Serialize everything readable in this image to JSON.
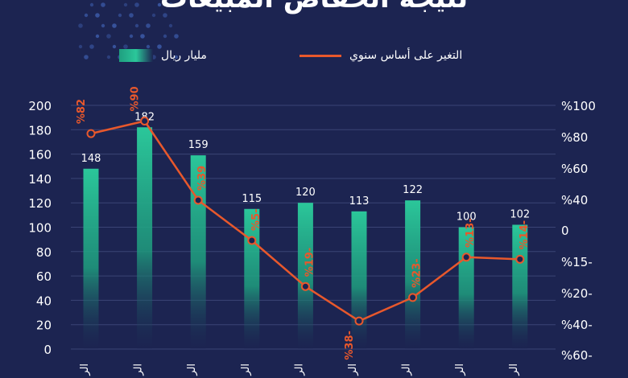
{
  "title": "نتيجة انخفاض المبيعات",
  "legend": {
    "bars_label": "مليار ريال",
    "line_label": "التغير على أساس سنوي"
  },
  "colors": {
    "background": "#1c2451",
    "bar": "#2bc79a",
    "line": "#e8582c",
    "grid": "#3a4475",
    "pct_label": "#e8582c",
    "axis_text": "#ffffff"
  },
  "chart_data": {
    "type": "bar",
    "title": "نتيجة انخفاض المبيعات",
    "bar_value_labels": [
      "148",
      "182",
      "159",
      "115",
      "120",
      "113",
      "122",
      "100",
      "102"
    ],
    "series": [
      {
        "name": "مليار ريال",
        "type": "bar",
        "values": [
          148,
          182,
          159,
          115,
          120,
          113,
          122,
          100,
          102
        ]
      },
      {
        "name": "التغير على أساس سنوي",
        "type": "line",
        "values": [
          82,
          90,
          39,
          -5,
          -19,
          -38,
          -23,
          -13,
          -14
        ]
      }
    ],
    "pct_labels": [
      "%82",
      "%90",
      "%39",
      "%5-",
      "%19-",
      "%38-",
      "%23-",
      "%13-",
      "%14-"
    ],
    "y_left": {
      "ticks": [
        0,
        20,
        40,
        60,
        80,
        100,
        120,
        140,
        160,
        180,
        200
      ],
      "lim": [
        0,
        200
      ]
    },
    "y_right": {
      "ticks": [
        100,
        80,
        60,
        40,
        0,
        -15,
        -20,
        -40,
        -60
      ],
      "tick_labels": [
        "%100",
        "%80",
        "%60",
        "%40",
        "0",
        "%15-",
        "%20-",
        "%40-",
        "%60-"
      ]
    },
    "category_label_stub": "الر",
    "grid": true,
    "legend_position": "top"
  }
}
